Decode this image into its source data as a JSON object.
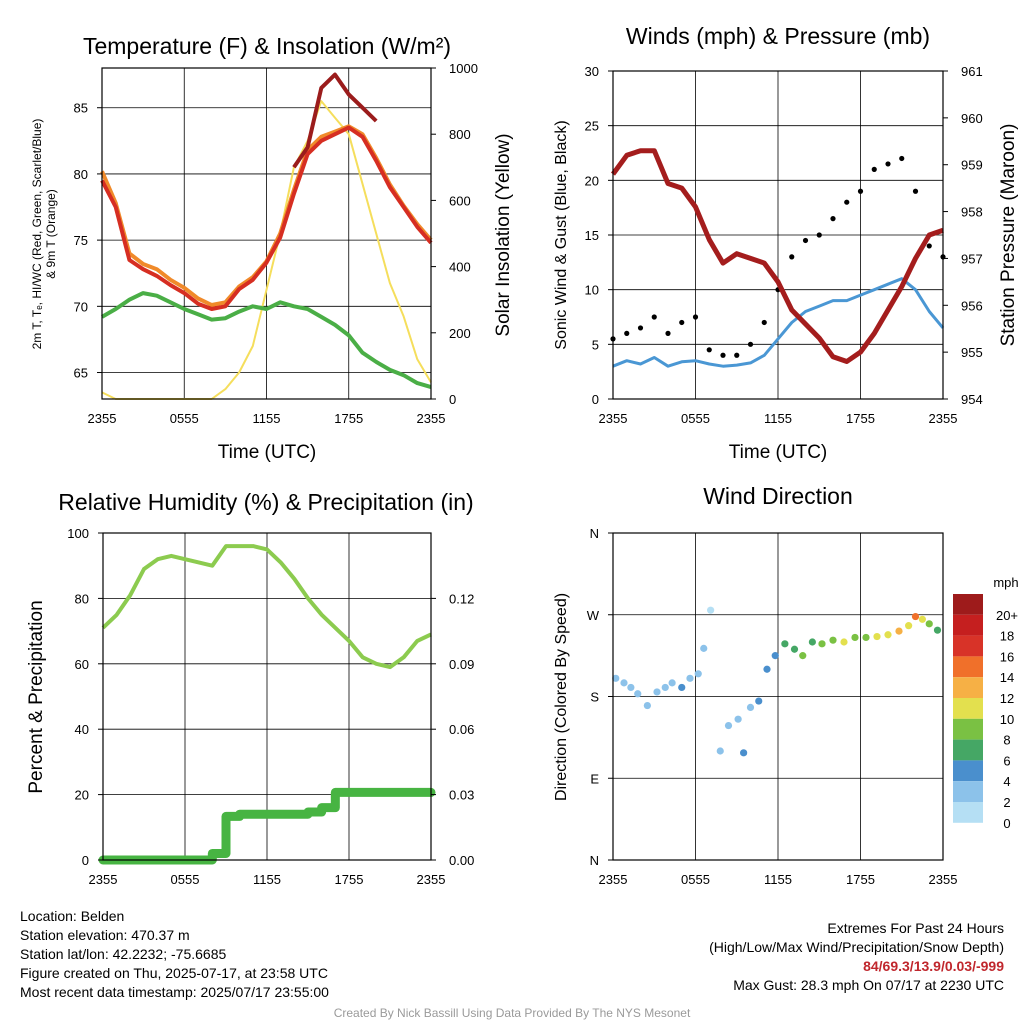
{
  "panels": {
    "temperature": {
      "title": "Temperature (F) & Insolation (W/m²)",
      "xlabel": "Time (UTC)",
      "ylabel_left": [
        "2m T, Tₑ, HI/WC (Red, Green, Scarlet/Blue)",
        "& 9m T (Orange)"
      ],
      "ylabel_right": "Solar Insolation (Yellow)"
    },
    "wind": {
      "title": "Winds (mph) & Pressure (mb)",
      "xlabel": "Time (UTC)",
      "ylabel_left": "Sonic Wind & Gust (Blue, Black)",
      "ylabel_right": "Station Pressure (Maroon)"
    },
    "humidity": {
      "title": "Relative Humidity (%) & Precipitation (in)",
      "ylabel_left": "Percent & Precipitation"
    },
    "direction": {
      "title": "Wind Direction",
      "ylabel_left": "Direction (Colored By Speed)",
      "colorbar_title": "mph",
      "colorbar_labels": [
        "20+",
        "18",
        "16",
        "14",
        "12",
        "10",
        "8",
        "6",
        "4",
        "2",
        "0"
      ]
    }
  },
  "info": {
    "location": "Location: Belden",
    "elevation": "Station elevation: 470.37 m",
    "latlon": "Station lat/lon: 42.2232; -75.6685",
    "created": "Figure created on Thu, 2025-07-17, at 23:58 UTC",
    "recent": "Most recent data timestamp: 2025/07/17 23:55:00",
    "extremes_title": "Extremes For Past 24 Hours",
    "extremes_sub": "(High/Low/Max Wind/Precipitation/Snow Depth)",
    "extremes_values": "84/69.3/13.9/0.03/-999",
    "max_gust": "Max Gust: 28.3 mph On 07/17 at 2230 UTC",
    "credit": "Created By Nick Bassill Using Data Provided By The NYS Mesonet"
  },
  "colors": {
    "temp_red": "#d62e22",
    "dewpoint_green": "#4aae46",
    "heatindex_maroon": "#9b1c1c",
    "temp9m_orange": "#f08a2a",
    "insolation_yellow": "#f5de5c",
    "wind_blue": "#4a97d4",
    "gust_black": "#000000",
    "pressure_maroon": "#a41d1d",
    "rh_lightgreen": "#8ccb4f",
    "precip_green": "#47b442",
    "colorbar": [
      "#f2f9fd",
      "#b5dff4",
      "#8cc2ea",
      "#4a8fcd",
      "#45a765",
      "#7ac143",
      "#e3e04e",
      "#f6b045",
      "#f0702a",
      "#d83328",
      "#c51f1f",
      "#9e1b1b"
    ]
  },
  "chart_data": [
    {
      "type": "line",
      "title": "Temperature (F) & Insolation (W/m²)",
      "xlabel": "Time (UTC)",
      "x_ticks": [
        "2355",
        "0555",
        "1155",
        "1755",
        "2355"
      ],
      "x_range_hours": [
        0,
        24
      ],
      "ylabel": "2m T, Td, HI/WC (Red, Green, Scarlet/Blue) & 9m T (Orange)",
      "ylim": [
        63,
        88
      ],
      "y_ticks": [
        65,
        70,
        75,
        80,
        85
      ],
      "y2label": "Solar Insolation (Yellow)",
      "y2lim": [
        0,
        1000
      ],
      "y2_ticks": [
        0,
        200,
        400,
        600,
        800,
        1000
      ],
      "x": [
        0,
        1,
        2,
        3,
        4,
        5,
        6,
        7,
        8,
        9,
        10,
        11,
        12,
        13,
        14,
        15,
        16,
        17,
        18,
        19,
        20,
        21,
        22,
        23,
        24
      ],
      "series": [
        {
          "name": "2m T (Red)",
          "axis": "left",
          "values": [
            79.5,
            77.5,
            73.5,
            72.8,
            72.3,
            71.6,
            71.0,
            70.2,
            69.8,
            70.0,
            71.3,
            72.0,
            73.3,
            75.2,
            78.5,
            81.5,
            82.5,
            83.0,
            83.5,
            82.8,
            81.0,
            79.0,
            77.5,
            76.0,
            74.8
          ]
        },
        {
          "name": "9m T (Orange)",
          "axis": "left",
          "values": [
            80.2,
            77.8,
            74.0,
            73.2,
            72.8,
            72.0,
            71.4,
            70.6,
            70.1,
            70.3,
            71.5,
            72.2,
            73.4,
            75.5,
            78.8,
            81.8,
            82.8,
            83.2,
            83.6,
            83.0,
            81.2,
            79.2,
            77.6,
            76.2,
            75.0
          ]
        },
        {
          "name": "Td (Green)",
          "axis": "left",
          "values": [
            69.2,
            69.8,
            70.5,
            71.0,
            70.8,
            70.3,
            69.8,
            69.4,
            69.0,
            69.1,
            69.6,
            70.0,
            69.8,
            70.3,
            70.0,
            69.8,
            69.2,
            68.6,
            67.8,
            66.5,
            65.8,
            65.2,
            64.8,
            64.2,
            63.9
          ]
        },
        {
          "name": "HI/WC (Maroon)",
          "axis": "left",
          "values": [
            null,
            null,
            null,
            null,
            null,
            null,
            null,
            null,
            null,
            null,
            null,
            null,
            null,
            null,
            80.5,
            82.0,
            86.5,
            87.5,
            86.0,
            85.0,
            84.0,
            null,
            null,
            null,
            null
          ]
        },
        {
          "name": "Solar Insolation (Yellow)",
          "axis": "right",
          "values": [
            20,
            0,
            0,
            0,
            0,
            0,
            0,
            0,
            0,
            30,
            80,
            160,
            330,
            500,
            700,
            780,
            900,
            850,
            800,
            650,
            500,
            350,
            250,
            120,
            50
          ]
        }
      ]
    },
    {
      "type": "line",
      "title": "Winds (mph) & Pressure (mb)",
      "xlabel": "Time (UTC)",
      "x_ticks": [
        "2355",
        "0555",
        "1155",
        "1755",
        "2355"
      ],
      "x_range_hours": [
        0,
        24
      ],
      "ylabel": "Sonic Wind & Gust (Blue, Black)",
      "ylim": [
        0,
        30
      ],
      "y_ticks": [
        0,
        5,
        10,
        15,
        20,
        25,
        30
      ],
      "y2label": "Station Pressure (Maroon)",
      "y2lim": [
        954,
        961
      ],
      "y2_ticks": [
        954,
        955,
        956,
        957,
        958,
        959,
        960,
        961
      ],
      "x": [
        0,
        1,
        2,
        3,
        4,
        5,
        6,
        7,
        8,
        9,
        10,
        11,
        12,
        13,
        14,
        15,
        16,
        17,
        18,
        19,
        20,
        21,
        22,
        23,
        24
      ],
      "series": [
        {
          "name": "Sonic Wind (Blue)",
          "axis": "left",
          "values": [
            3.0,
            3.5,
            3.2,
            3.8,
            3.0,
            3.4,
            3.5,
            3.2,
            3.0,
            3.1,
            3.3,
            4.0,
            5.5,
            7.0,
            8.0,
            8.5,
            9.0,
            9.0,
            9.5,
            10.0,
            10.5,
            11.0,
            10.0,
            8.0,
            6.5
          ]
        },
        {
          "name": "Gust (Black)",
          "axis": "left",
          "values": [
            5.5,
            6.0,
            6.5,
            7.5,
            6.0,
            7.0,
            7.5,
            4.5,
            4.0,
            4.0,
            5.0,
            7.0,
            10.0,
            13.0,
            14.5,
            15.0,
            16.5,
            18.0,
            19.0,
            21.0,
            21.5,
            22.0,
            19.0,
            14.0,
            13.0
          ]
        },
        {
          "name": "Station Pressure (Maroon)",
          "axis": "right",
          "values": [
            958.8,
            959.2,
            959.3,
            959.3,
            958.6,
            958.5,
            958.1,
            957.4,
            956.9,
            957.1,
            957.0,
            956.9,
            956.5,
            955.9,
            955.6,
            955.3,
            954.9,
            954.8,
            955.0,
            955.4,
            955.9,
            956.4,
            957.0,
            957.5,
            957.6
          ]
        }
      ],
      "max_gust": 28.3
    },
    {
      "type": "line",
      "title": "Relative Humidity (%) & Precipitation (in)",
      "ylabel": "Percent & Precipitation",
      "x_ticks": [
        "2355",
        "0555",
        "1155",
        "1755",
        "2355"
      ],
      "x_range_hours": [
        0,
        24
      ],
      "ylim": [
        0,
        100
      ],
      "y_ticks": [
        0,
        20,
        40,
        60,
        80,
        100
      ],
      "y2lim": [
        0,
        0.15
      ],
      "y2_ticks": [
        0.0,
        0.03,
        0.06,
        0.09,
        0.12
      ],
      "x": [
        0,
        1,
        2,
        3,
        4,
        5,
        6,
        7,
        8,
        9,
        10,
        11,
        12,
        13,
        14,
        15,
        16,
        17,
        18,
        19,
        20,
        21,
        22,
        23,
        24
      ],
      "series": [
        {
          "name": "Relative Humidity",
          "axis": "left",
          "values": [
            71,
            75,
            81,
            89,
            92,
            93,
            92,
            91,
            90,
            96,
            96,
            96,
            95,
            91,
            86,
            80,
            75,
            71,
            67,
            62,
            60,
            59,
            62,
            67,
            69
          ]
        },
        {
          "name": "Precipitation",
          "axis": "right",
          "values": [
            0,
            0,
            0,
            0,
            0,
            0,
            0,
            0,
            0.003,
            0.02,
            0.021,
            0.021,
            0.021,
            0.021,
            0.021,
            0.022,
            0.024,
            0.031,
            0.031,
            0.031,
            0.031,
            0.031,
            0.031,
            0.031,
            0.031
          ]
        }
      ]
    },
    {
      "type": "scatter",
      "title": "Wind Direction",
      "ylabel": "Direction (Colored By Speed)",
      "x_ticks": [
        "2355",
        "0555",
        "1155",
        "1755",
        "2355"
      ],
      "x_range_hours": [
        0,
        24
      ],
      "y_ticks": [
        "N",
        "E",
        "S",
        "W",
        "N"
      ],
      "ylim_deg": [
        0,
        360
      ],
      "colorbar_units": "mph",
      "colorbar_levels": [
        "0",
        "2",
        "4",
        "6",
        "8",
        "10",
        "12",
        "14",
        "16",
        "18",
        "20+"
      ],
      "points": [
        {
          "h": 0.2,
          "dir": 200,
          "spd": 3
        },
        {
          "h": 0.8,
          "dir": 195,
          "spd": 2
        },
        {
          "h": 1.3,
          "dir": 190,
          "spd": 3
        },
        {
          "h": 1.8,
          "dir": 183,
          "spd": 2
        },
        {
          "h": 2.5,
          "dir": 170,
          "spd": 2
        },
        {
          "h": 3.2,
          "dir": 185,
          "spd": 3
        },
        {
          "h": 3.8,
          "dir": 190,
          "spd": 3
        },
        {
          "h": 4.3,
          "dir": 195,
          "spd": 3
        },
        {
          "h": 5.0,
          "dir": 190,
          "spd": 4
        },
        {
          "h": 5.6,
          "dir": 200,
          "spd": 3
        },
        {
          "h": 6.2,
          "dir": 205,
          "spd": 2
        },
        {
          "h": 6.6,
          "dir": 233,
          "spd": 3
        },
        {
          "h": 7.1,
          "dir": 275,
          "spd": 1
        },
        {
          "h": 7.8,
          "dir": 120,
          "spd": 3
        },
        {
          "h": 8.4,
          "dir": 148,
          "spd": 2
        },
        {
          "h": 9.1,
          "dir": 155,
          "spd": 3
        },
        {
          "h": 9.5,
          "dir": 118,
          "spd": 4
        },
        {
          "h": 10.0,
          "dir": 168,
          "spd": 3
        },
        {
          "h": 10.6,
          "dir": 175,
          "spd": 4
        },
        {
          "h": 11.2,
          "dir": 210,
          "spd": 4
        },
        {
          "h": 11.8,
          "dir": 225,
          "spd": 5
        },
        {
          "h": 12.5,
          "dir": 238,
          "spd": 6
        },
        {
          "h": 13.2,
          "dir": 232,
          "spd": 7
        },
        {
          "h": 13.8,
          "dir": 225,
          "spd": 8
        },
        {
          "h": 14.5,
          "dir": 240,
          "spd": 7
        },
        {
          "h": 15.2,
          "dir": 238,
          "spd": 8
        },
        {
          "h": 16.0,
          "dir": 242,
          "spd": 9
        },
        {
          "h": 16.8,
          "dir": 240,
          "spd": 10
        },
        {
          "h": 17.6,
          "dir": 245,
          "spd": 9
        },
        {
          "h": 18.4,
          "dir": 245,
          "spd": 8
        },
        {
          "h": 19.2,
          "dir": 246,
          "spd": 10
        },
        {
          "h": 20.0,
          "dir": 248,
          "spd": 11
        },
        {
          "h": 20.8,
          "dir": 252,
          "spd": 12
        },
        {
          "h": 21.5,
          "dir": 258,
          "spd": 10
        },
        {
          "h": 22.0,
          "dir": 268,
          "spd": 15
        },
        {
          "h": 22.5,
          "dir": 265,
          "spd": 11
        },
        {
          "h": 23.0,
          "dir": 260,
          "spd": 8
        },
        {
          "h": 23.6,
          "dir": 253,
          "spd": 6
        }
      ]
    }
  ]
}
